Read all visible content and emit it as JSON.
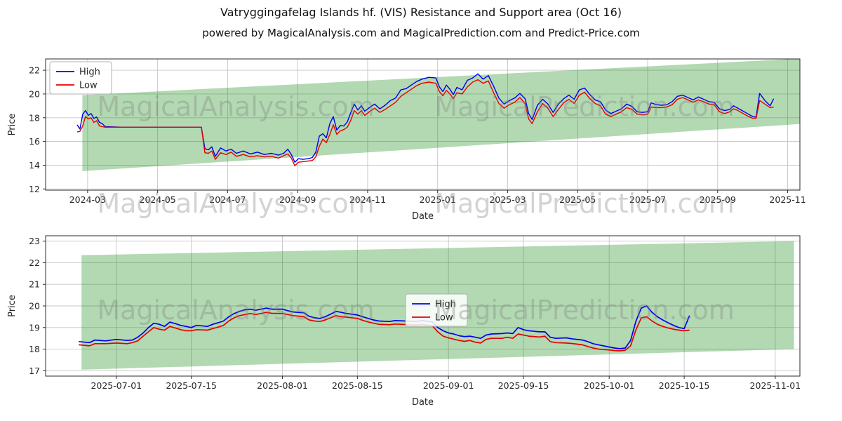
{
  "figure": {
    "title": "Vatryggingafelag Islands hf. (VIS) Resistance and Support area (Oct 16)",
    "subtitle": "powered by MagicalAnalysis.com and MagicalPrediction.com and Predict-Price.com"
  },
  "watermarks": [
    "MagicalAnalysis.com",
    "MagicalPrediction.com"
  ],
  "colors": {
    "high": "#0000ee",
    "low": "#e60000",
    "band": "#008000",
    "grid": "#c6c6c6",
    "spine": "#2b2b2b",
    "text": "#262626"
  },
  "chart_data": [
    {
      "type": "line",
      "xlabel": "Date",
      "ylabel": "Price",
      "legend_pos": "upper-left",
      "grid": true,
      "xlim": [
        0.8,
        22.35
      ],
      "ylim": [
        11.9,
        22.95
      ],
      "y_ticks": [
        12,
        14,
        16,
        18,
        20,
        22
      ],
      "x_ticks": {
        "values": [
          2,
          4,
          6,
          8,
          10,
          12,
          14,
          16,
          18,
          20,
          22
        ],
        "labels": [
          "2024-03",
          "2024-05",
          "2024-07",
          "2024-09",
          "2024-11",
          "2025-01",
          "2025-03",
          "2025-05",
          "2025-07",
          "2025-09",
          "2025-11"
        ]
      },
      "band": {
        "x": [
          1.85,
          22.5
        ],
        "top": [
          19.9,
          23.0
        ],
        "bottom": [
          13.5,
          17.5
        ]
      },
      "x": [
        1.7,
        1.78,
        1.86,
        1.94,
        2.02,
        2.1,
        2.18,
        2.26,
        2.34,
        2.42,
        2.5,
        3.0,
        3.5,
        4.0,
        4.5,
        5.0,
        5.25,
        5.35,
        5.45,
        5.55,
        5.65,
        5.8,
        5.95,
        6.1,
        6.25,
        6.45,
        6.65,
        6.85,
        7.05,
        7.25,
        7.45,
        7.6,
        7.72,
        7.82,
        7.92,
        8.02,
        8.15,
        8.3,
        8.42,
        8.52,
        8.62,
        8.72,
        8.82,
        8.92,
        9.02,
        9.12,
        9.22,
        9.32,
        9.42,
        9.52,
        9.62,
        9.72,
        9.82,
        9.92,
        10.05,
        10.2,
        10.35,
        10.5,
        10.65,
        10.8,
        10.95,
        11.1,
        11.25,
        11.4,
        11.55,
        11.75,
        11.95,
        12.05,
        12.15,
        12.25,
        12.35,
        12.45,
        12.55,
        12.7,
        12.85,
        13.0,
        13.15,
        13.3,
        13.45,
        13.6,
        13.75,
        13.9,
        14.05,
        14.2,
        14.35,
        14.5,
        14.6,
        14.7,
        14.85,
        15.0,
        15.15,
        15.3,
        15.45,
        15.6,
        15.75,
        15.9,
        16.05,
        16.2,
        16.35,
        16.5,
        16.65,
        16.8,
        16.95,
        17.1,
        17.25,
        17.4,
        17.55,
        17.7,
        17.85,
        18.0,
        18.1,
        18.25,
        18.4,
        18.55,
        18.7,
        18.85,
        19.0,
        19.15,
        19.3,
        19.45,
        19.6,
        19.75,
        19.9,
        20.05,
        20.2,
        20.35,
        20.45,
        20.55,
        20.7,
        20.85,
        21.0,
        21.1,
        21.2,
        21.35,
        21.5,
        21.6
      ],
      "series": [
        {
          "name": "High",
          "color_key": "high",
          "values": [
            17.4,
            17.05,
            18.3,
            18.6,
            18.2,
            18.35,
            17.95,
            18.05,
            17.6,
            17.5,
            17.25,
            17.2,
            17.2,
            17.2,
            17.2,
            17.2,
            17.2,
            15.4,
            15.3,
            15.55,
            14.75,
            15.45,
            15.2,
            15.35,
            15.0,
            15.2,
            14.95,
            15.1,
            14.9,
            15.0,
            14.85,
            15.0,
            15.35,
            14.9,
            14.25,
            14.55,
            14.5,
            14.55,
            14.65,
            15.1,
            16.45,
            16.65,
            16.3,
            17.5,
            18.1,
            16.95,
            17.35,
            17.3,
            17.65,
            18.45,
            19.15,
            18.65,
            19.0,
            18.55,
            18.85,
            19.15,
            18.75,
            19.05,
            19.45,
            19.65,
            20.35,
            20.45,
            20.75,
            21.05,
            21.25,
            21.4,
            21.35,
            20.6,
            20.2,
            20.75,
            20.4,
            19.95,
            20.55,
            20.35,
            21.15,
            21.35,
            21.7,
            21.25,
            21.55,
            20.65,
            19.65,
            19.15,
            19.45,
            19.65,
            20.05,
            19.6,
            18.35,
            17.85,
            19.05,
            19.55,
            19.15,
            18.45,
            19.15,
            19.6,
            19.9,
            19.55,
            20.35,
            20.5,
            19.95,
            19.5,
            19.35,
            18.65,
            18.35,
            18.55,
            18.75,
            19.15,
            18.95,
            18.5,
            18.45,
            18.5,
            19.25,
            19.1,
            19.05,
            19.1,
            19.35,
            19.8,
            19.9,
            19.7,
            19.5,
            19.75,
            19.55,
            19.35,
            19.3,
            18.75,
            18.6,
            18.7,
            19.0,
            18.85,
            18.6,
            18.35,
            18.1,
            18.05,
            20.05,
            19.45,
            19.0,
            19.6
          ]
        },
        {
          "name": "Low",
          "color_key": "low",
          "values": [
            16.8,
            16.85,
            17.3,
            18.1,
            17.9,
            18.0,
            17.6,
            17.75,
            17.3,
            17.25,
            17.2,
            17.2,
            17.2,
            17.2,
            17.2,
            17.2,
            17.2,
            15.05,
            15.0,
            15.2,
            14.5,
            15.05,
            14.9,
            15.1,
            14.75,
            14.9,
            14.7,
            14.8,
            14.7,
            14.75,
            14.6,
            14.8,
            14.95,
            14.6,
            13.95,
            14.25,
            14.3,
            14.35,
            14.4,
            14.7,
            15.6,
            16.2,
            15.9,
            16.6,
            17.4,
            16.6,
            16.9,
            17.0,
            17.2,
            17.8,
            18.6,
            18.3,
            18.6,
            18.2,
            18.5,
            18.8,
            18.45,
            18.7,
            19.0,
            19.3,
            19.8,
            20.1,
            20.4,
            20.7,
            20.9,
            21.0,
            20.9,
            20.2,
            19.85,
            20.3,
            20.0,
            19.6,
            20.1,
            20.0,
            20.6,
            21.0,
            21.2,
            20.9,
            21.1,
            20.1,
            19.2,
            18.8,
            19.1,
            19.3,
            19.7,
            19.2,
            17.9,
            17.5,
            18.5,
            19.2,
            18.8,
            18.1,
            18.7,
            19.25,
            19.55,
            19.2,
            19.9,
            20.15,
            19.6,
            19.2,
            19.0,
            18.3,
            18.1,
            18.3,
            18.5,
            18.85,
            18.7,
            18.3,
            18.25,
            18.3,
            18.9,
            18.85,
            18.85,
            18.9,
            19.1,
            19.55,
            19.7,
            19.5,
            19.3,
            19.5,
            19.35,
            19.15,
            19.1,
            18.5,
            18.35,
            18.5,
            18.75,
            18.65,
            18.4,
            18.15,
            17.95,
            17.95,
            19.45,
            19.15,
            18.85,
            18.9
          ]
        }
      ]
    },
    {
      "type": "line",
      "xlabel": "Date",
      "ylabel": "Price",
      "legend_pos": "center",
      "grid": true,
      "xlim": [
        -0.2,
        140.6
      ],
      "ylim": [
        16.75,
        23.25
      ],
      "y_ticks": [
        17,
        18,
        19,
        20,
        21,
        22,
        23
      ],
      "x_ticks": {
        "values": [
          13,
          27,
          44,
          58,
          75,
          89,
          105,
          119,
          136
        ],
        "labels": [
          "2025-07-01",
          "2025-07-15",
          "2025-08-01",
          "2025-08-15",
          "2025-09-01",
          "2025-09-15",
          "2025-10-01",
          "2025-10-15",
          "2025-11-01"
        ]
      },
      "band": {
        "x": [
          6.5,
          139.5
        ],
        "top": [
          22.35,
          23.0
        ],
        "bottom": [
          17.05,
          18.0
        ]
      },
      "x": [
        6,
        8,
        9,
        11,
        13,
        15,
        16,
        17,
        18,
        19,
        20,
        21,
        22,
        23,
        24,
        25,
        26,
        27,
        28,
        30,
        31,
        32,
        33,
        34,
        35,
        36,
        37,
        38,
        39,
        41,
        42,
        44,
        45,
        46,
        48,
        49,
        50,
        51,
        52,
        53,
        54,
        55,
        56,
        58,
        59,
        60,
        61,
        62,
        64,
        65,
        67,
        69,
        70,
        72,
        73,
        74,
        75,
        76,
        77,
        78,
        79,
        80,
        81,
        82,
        83,
        85,
        86,
        87,
        88,
        89,
        90,
        92,
        93,
        94,
        95,
        97,
        98,
        100,
        101,
        102,
        103,
        105,
        106,
        107,
        108,
        109,
        110,
        111,
        112,
        113,
        114,
        115,
        116,
        117,
        118,
        119,
        120
      ],
      "series": [
        {
          "name": "High",
          "color_key": "high",
          "values": [
            18.35,
            18.3,
            18.42,
            18.38,
            18.45,
            18.4,
            18.42,
            18.55,
            18.75,
            19.0,
            19.2,
            19.15,
            19.05,
            19.25,
            19.18,
            19.1,
            19.05,
            19.0,
            19.1,
            19.05,
            19.15,
            19.22,
            19.3,
            19.5,
            19.65,
            19.75,
            19.82,
            19.85,
            19.8,
            19.9,
            19.85,
            19.85,
            19.78,
            19.72,
            19.68,
            19.52,
            19.45,
            19.42,
            19.5,
            19.62,
            19.75,
            19.7,
            19.65,
            19.58,
            19.5,
            19.42,
            19.35,
            19.3,
            19.28,
            19.32,
            19.3,
            19.28,
            19.32,
            19.26,
            19.0,
            18.85,
            18.75,
            18.7,
            18.62,
            18.58,
            18.6,
            18.55,
            18.5,
            18.65,
            18.7,
            18.72,
            18.75,
            18.72,
            19.0,
            18.9,
            18.85,
            18.8,
            18.8,
            18.55,
            18.5,
            18.52,
            18.48,
            18.42,
            18.35,
            18.25,
            18.2,
            18.1,
            18.05,
            18.02,
            18.05,
            18.4,
            19.3,
            19.9,
            20.0,
            19.7,
            19.5,
            19.35,
            19.22,
            19.1,
            19.0,
            18.95,
            19.55
          ]
        },
        {
          "name": "Low",
          "color_key": "low",
          "values": [
            18.2,
            18.15,
            18.25,
            18.25,
            18.28,
            18.25,
            18.3,
            18.38,
            18.6,
            18.8,
            19.0,
            18.92,
            18.88,
            19.05,
            18.98,
            18.9,
            18.85,
            18.85,
            18.9,
            18.88,
            18.95,
            19.02,
            19.1,
            19.3,
            19.45,
            19.55,
            19.6,
            19.65,
            19.6,
            19.7,
            19.66,
            19.65,
            19.6,
            19.55,
            19.5,
            19.35,
            19.3,
            19.28,
            19.35,
            19.45,
            19.55,
            19.5,
            19.48,
            19.42,
            19.33,
            19.26,
            19.2,
            19.15,
            19.13,
            19.16,
            19.14,
            19.12,
            19.15,
            19.08,
            18.8,
            18.6,
            18.52,
            18.46,
            18.4,
            18.36,
            18.4,
            18.32,
            18.28,
            18.45,
            18.5,
            18.5,
            18.55,
            18.5,
            18.7,
            18.65,
            18.6,
            18.56,
            18.6,
            18.35,
            18.3,
            18.28,
            18.26,
            18.2,
            18.12,
            18.05,
            18.0,
            17.96,
            17.93,
            17.92,
            17.95,
            18.15,
            18.9,
            19.45,
            19.5,
            19.3,
            19.15,
            19.05,
            18.98,
            18.92,
            18.88,
            18.85,
            18.88
          ]
        }
      ]
    }
  ]
}
